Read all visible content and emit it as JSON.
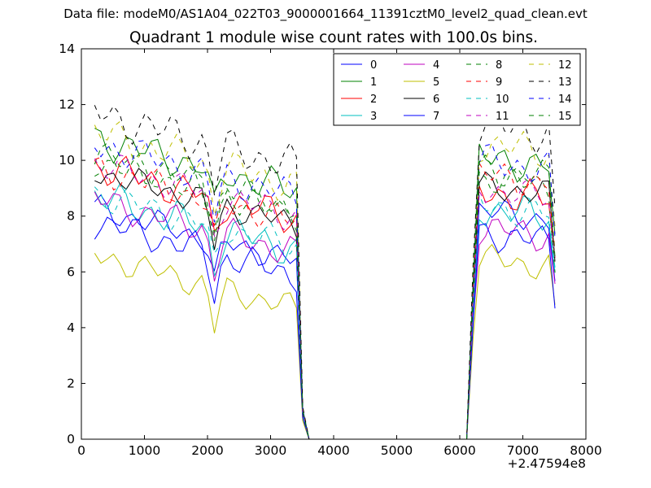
{
  "header": {
    "data_file": "Data file: modeM0/AS1A04_022T03_9000001664_11391cztM0_level2_quad_clean.evt"
  },
  "chart_data": {
    "type": "line",
    "title": "Quadrant 1 module wise count rates with 100.0s bins.",
    "xlabel": "",
    "ylabel": "",
    "x_offset_label": "+2.47594e8",
    "xlim": [
      0,
      8000
    ],
    "ylim": [
      0,
      14
    ],
    "xticks": [
      0,
      1000,
      2000,
      3000,
      4000,
      5000,
      6000,
      7000,
      8000
    ],
    "yticks": [
      0,
      2,
      4,
      6,
      8,
      10,
      12,
      14
    ],
    "x": [
      210,
      310,
      410,
      510,
      610,
      710,
      810,
      910,
      1010,
      1110,
      1210,
      1310,
      1410,
      1510,
      1610,
      1710,
      1810,
      1910,
      2010,
      2110,
      2210,
      2310,
      2410,
      2510,
      2610,
      2710,
      2810,
      2910,
      3010,
      3110,
      3210,
      3310,
      3410,
      3510,
      3610,
      3710,
      6110,
      6210,
      6310,
      6410,
      6510,
      6610,
      6710,
      6810,
      6910,
      7010,
      7110,
      7210,
      7310,
      7410,
      7510
    ],
    "legend_columns": 4,
    "legend_position": "upper right",
    "series": [
      {
        "name": "0",
        "color": "#0000ff",
        "dash": "solid",
        "base1": 8.3,
        "base2": 8.2,
        "spread": 0.35,
        "phase": 0.0
      },
      {
        "name": "1",
        "color": "#008000",
        "dash": "solid",
        "base1": 10.8,
        "base2": 10.1,
        "spread": 0.45,
        "phase": 0.7
      },
      {
        "name": "2",
        "color": "#ff0000",
        "dash": "solid",
        "base1": 9.8,
        "base2": 8.9,
        "spread": 0.45,
        "phase": 1.4
      },
      {
        "name": "3",
        "color": "#00bfbf",
        "dash": "solid",
        "base1": 8.7,
        "base2": 8.3,
        "spread": 0.45,
        "phase": 2.1
      },
      {
        "name": "4",
        "color": "#bf00bf",
        "dash": "solid",
        "base1": 8.6,
        "base2": 7.6,
        "spread": 0.4,
        "phase": 2.8
      },
      {
        "name": "5",
        "color": "#bfbf00",
        "dash": "solid",
        "base1": 6.6,
        "base2": 6.5,
        "spread": 0.35,
        "phase": 3.5
      },
      {
        "name": "6",
        "color": "#000000",
        "dash": "solid",
        "base1": 9.6,
        "base2": 9.1,
        "spread": 0.35,
        "phase": 4.2
      },
      {
        "name": "7",
        "color": "#0000ff",
        "dash": "solid",
        "base1": 7.8,
        "base2": 7.4,
        "spread": 0.4,
        "phase": 4.9
      },
      {
        "name": "8",
        "color": "#008000",
        "dash": "dashed",
        "base1": 10.2,
        "base2": 9.4,
        "spread": 0.4,
        "phase": 5.6
      },
      {
        "name": "9",
        "color": "#ff0000",
        "dash": "dashed",
        "base1": 9.7,
        "base2": 9.5,
        "spread": 0.4,
        "phase": 0.35
      },
      {
        "name": "10",
        "color": "#00bfbf",
        "dash": "dashed",
        "base1": 8.8,
        "base2": 8.4,
        "spread": 0.4,
        "phase": 1.05
      },
      {
        "name": "11",
        "color": "#bf00bf",
        "dash": "dashed",
        "base1": 9.9,
        "base2": 9.0,
        "spread": 0.4,
        "phase": 1.75
      },
      {
        "name": "12",
        "color": "#bfbf00",
        "dash": "dashed",
        "base1": 11.0,
        "base2": 10.6,
        "spread": 0.45,
        "phase": 2.45
      },
      {
        "name": "13",
        "color": "#000000",
        "dash": "dashed",
        "base1": 11.7,
        "base2": 11.3,
        "spread": 0.5,
        "phase": 3.15
      },
      {
        "name": "14",
        "color": "#0000ff",
        "dash": "dashed",
        "base1": 10.6,
        "base2": 10.0,
        "spread": 0.45,
        "phase": 3.85
      },
      {
        "name": "15",
        "color": "#008000",
        "dash": "dashed",
        "base1": 10.0,
        "base2": 9.7,
        "spread": 0.4,
        "phase": 4.55
      }
    ]
  }
}
